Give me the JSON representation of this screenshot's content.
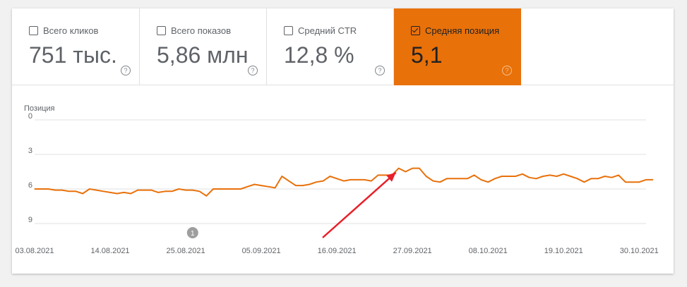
{
  "metrics": [
    {
      "label": "Всего кликов",
      "value": "751 тыс.",
      "active": false
    },
    {
      "label": "Всего показов",
      "value": "5,86 млн",
      "active": false
    },
    {
      "label": "Средний CTR",
      "value": "12,8 %",
      "active": false
    },
    {
      "label": "Средняя позиция",
      "value": "5,1",
      "active": true
    }
  ],
  "help_glyph": "?",
  "colors": {
    "accent": "#e8710a",
    "arrow": "#e8202a",
    "grid": "#e0e0e0",
    "annotation": "#9e9e9e"
  },
  "chart_data": {
    "type": "line",
    "ylabel": "Позиция",
    "y_inverted": true,
    "ylim": [
      0,
      9
    ],
    "yticks": [
      "0",
      "3",
      "6",
      "9"
    ],
    "xticks": [
      "03.08.2021",
      "14.08.2021",
      "25.08.2021",
      "05.09.2021",
      "16.09.2021",
      "27.09.2021",
      "08.10.2021",
      "19.10.2021",
      "30.10.2021"
    ],
    "x_start": "03.08.2021",
    "x_end": "31.10.2021",
    "series": [
      {
        "values": [
          6.0,
          6.0,
          6.0,
          6.1,
          6.1,
          6.2,
          6.2,
          6.4,
          6.0,
          6.1,
          6.2,
          6.3,
          6.4,
          6.3,
          6.4,
          6.1,
          6.1,
          6.1,
          6.3,
          6.2,
          6.2,
          6.0,
          6.1,
          6.1,
          6.2,
          6.6,
          6.0,
          6.0,
          6.0,
          6.0,
          6.0,
          5.8,
          5.6,
          5.7,
          5.8,
          5.9,
          4.9,
          5.3,
          5.7,
          5.7,
          5.6,
          5.4,
          5.3,
          4.9,
          5.1,
          5.3,
          5.2,
          5.2,
          5.2,
          5.3,
          4.8,
          4.8,
          4.8,
          4.2,
          4.5,
          4.2,
          4.2,
          4.9,
          5.3,
          5.4,
          5.1,
          5.1,
          5.1,
          5.1,
          4.8,
          5.2,
          5.4,
          5.1,
          4.9,
          4.9,
          4.9,
          4.7,
          5.0,
          5.1,
          4.9,
          4.8,
          4.9,
          4.7,
          4.9,
          5.1,
          5.4,
          5.1,
          5.1,
          4.9,
          5.0,
          4.8,
          5.4,
          5.4,
          5.4,
          5.2,
          5.2
        ]
      }
    ],
    "annotations": [
      {
        "label": "1",
        "date": "26.08.2021"
      }
    ]
  }
}
